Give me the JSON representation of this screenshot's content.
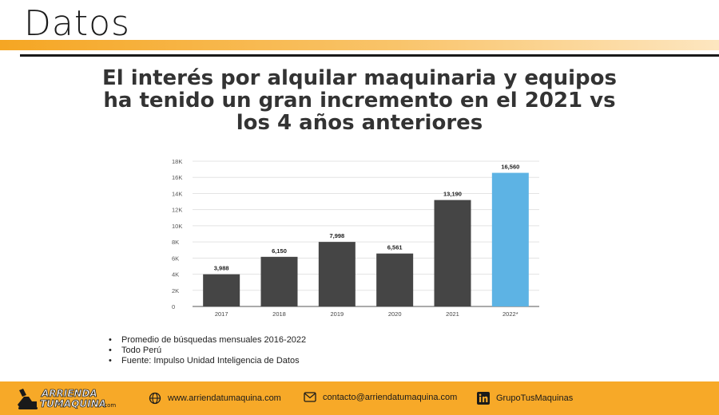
{
  "header": {
    "title": "Datos"
  },
  "slide": {
    "heading": "El interés por alquilar maquinaria y equipos ha tenido un gran incremento en el 2021 vs los 4 años anteriores"
  },
  "chart_data": {
    "type": "bar",
    "categories": [
      "2017",
      "2018",
      "2019",
      "2020",
      "2021",
      "2022*"
    ],
    "values": [
      3988,
      6150,
      7998,
      6561,
      13190,
      16560
    ],
    "value_labels": [
      "3,988",
      "6,150",
      "7,998",
      "6,561",
      "13,190",
      "16,560"
    ],
    "ylim": [
      0,
      18000
    ],
    "yticks": [
      0,
      2000,
      4000,
      6000,
      8000,
      10000,
      12000,
      14000,
      16000,
      18000
    ],
    "ytick_labels": [
      "0",
      "2K",
      "4K",
      "6K",
      "8K",
      "10K",
      "12K",
      "14K",
      "16K",
      "18K"
    ],
    "grid": true,
    "colors": {
      "default": "#454545",
      "highlight": "#5db3e4"
    },
    "highlight_index": 5
  },
  "notes": [
    "Promedio de búsquedas mensuales 2016-2022",
    "Todo Perú",
    "Fuente: Impulso Unidad Inteligencia de Datos"
  ],
  "footer": {
    "logo_text_top": "ARRIENDA",
    "logo_text_bottom": "TUMAQUINA",
    "logo_text_suffix": ".com",
    "website": "www.arriendatumaquina.com",
    "email": "contacto@arriendatumaquina.com",
    "linkedin": "GrupoTusMaquinas",
    "icons": {
      "website": "globe-icon",
      "email": "envelope-icon",
      "linkedin": "linkedin-icon"
    }
  }
}
